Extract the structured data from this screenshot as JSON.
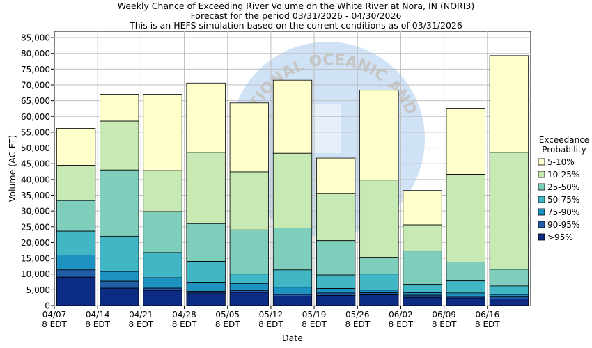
{
  "chart_data": {
    "type": "bar",
    "stacked": true,
    "title_lines": [
      "Weekly Chance of Exceeding River Volume on the White River at Nora, IN (NORI3)",
      "Forecast for the period 03/31/2026 - 04/30/2026",
      "This is an HEFS simulation based on the current conditions as of 03/31/2026"
    ],
    "xlabel": "Date",
    "ylabel": "Volume (AC-FT)",
    "ylim": [
      0,
      87000
    ],
    "yticks": [
      0,
      5000,
      10000,
      15000,
      20000,
      25000,
      30000,
      35000,
      40000,
      45000,
      50000,
      55000,
      60000,
      65000,
      70000,
      75000,
      80000,
      85000
    ],
    "ytick_labels": [
      "0",
      "5,000",
      "10,000",
      "15,000",
      "20,000",
      "25,000",
      "30,000",
      "35,000",
      "40,000",
      "45,000",
      "50,000",
      "55,000",
      "60,000",
      "65,000",
      "70,000",
      "75,000",
      "80,000",
      "85,000"
    ],
    "xtick_labels": [
      {
        "date": "04/07",
        "time": "8 EDT"
      },
      {
        "date": "04/14",
        "time": "8 EDT"
      },
      {
        "date": "04/21",
        "time": "8 EDT"
      },
      {
        "date": "04/28",
        "time": "8 EDT"
      },
      {
        "date": "05/05",
        "time": "8 EDT"
      },
      {
        "date": "05/12",
        "time": "8 EDT"
      },
      {
        "date": "05/19",
        "time": "8 EDT"
      },
      {
        "date": "05/26",
        "time": "8 EDT"
      },
      {
        "date": "06/02",
        "time": "8 EDT"
      },
      {
        "date": "06/09",
        "time": "8 EDT"
      },
      {
        "date": "06/16",
        "time": "8 EDT"
      }
    ],
    "legend": {
      "title": "Exceedance Probability",
      "position": "right",
      "entries": [
        "5-10%",
        "10-25%",
        "25-50%",
        "50-75%",
        "75-90%",
        "90-95%",
        ">95%"
      ]
    },
    "grid": true,
    "colors": [
      "#ffffcc",
      "#c7e9b4",
      "#7fcdbb",
      "#41b6c4",
      "#1d91c0",
      "#225ea8",
      "#0c2c84"
    ],
    "bars": [
      [
        56200,
        44500,
        33300,
        23600,
        16000,
        11300,
        9000
      ],
      [
        67000,
        58500,
        43000,
        22000,
        10800,
        7700,
        5500
      ],
      [
        67000,
        42800,
        29800,
        16800,
        8800,
        5500,
        4800
      ],
      [
        70600,
        48600,
        26000,
        14000,
        7400,
        4500,
        4000
      ],
      [
        64300,
        42400,
        24000,
        10000,
        7000,
        4800,
        4200
      ],
      [
        71500,
        48300,
        24600,
        11300,
        5800,
        3500,
        3000
      ],
      [
        46800,
        35500,
        20600,
        9700,
        5400,
        4000,
        3200
      ],
      [
        68300,
        39800,
        15300,
        10000,
        4900,
        4100,
        3400
      ],
      [
        36500,
        25600,
        17300,
        6700,
        4100,
        3300,
        2600
      ],
      [
        62600,
        41600,
        13800,
        7800,
        4000,
        2900,
        2400
      ],
      [
        79300,
        48600,
        11500,
        6200,
        3500,
        2700,
        2100
      ]
    ]
  },
  "watermark_text": "NATIONAL OCEANIC AND ATMOSPHERIC ADMINISTRATION"
}
